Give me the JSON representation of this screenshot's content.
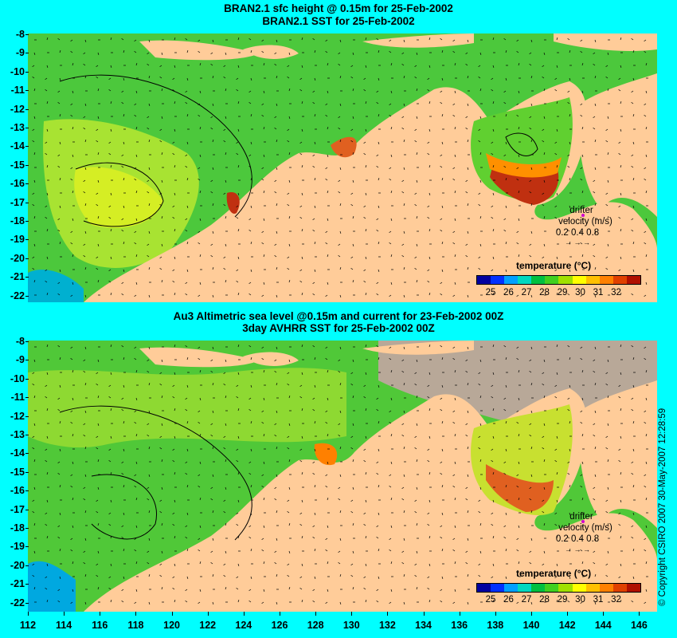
{
  "top_panel": {
    "title_line1": "BRAN2.1 sfc height @ 0.15m for 25-Feb-2002",
    "title_line2": "BRAN2.1 SST for 25-Feb-2002",
    "legend_title": "temperature (°C)",
    "drifter_label": "drifter",
    "velocity_label": "velocity (m/s)",
    "velocity_values": "0.2 0.4 0.8",
    "velocity_arrows": "→ → →"
  },
  "bottom_panel": {
    "title_line1": "Au3 Altimetric sea level  @0.15m and current for 23-Feb-2002 00Z",
    "title_line2": "3day AVHRR SST for 25-Feb-2002 00Z",
    "legend_title": "temperature (°C)",
    "drifter_label": "drifter",
    "velocity_label": "velocity (m/s)",
    "velocity_values": "0.2 0.4 0.8",
    "velocity_arrows": "→ → →"
  },
  "y_axis_labels": [
    "-8",
    "-9",
    "-10",
    "-11",
    "-12",
    "-13",
    "-14",
    "-15",
    "-16",
    "-17",
    "-18",
    "-19",
    "-20",
    "-21",
    "-22"
  ],
  "x_axis_labels": [
    "112",
    "114",
    "116",
    "118",
    "120",
    "122",
    "124",
    "126",
    "128",
    "130",
    "132",
    "134",
    "136",
    "138",
    "140",
    "142",
    "144",
    "146"
  ],
  "colorbar_labels": [
    "25",
    "26",
    "27",
    "28",
    "29",
    "30",
    "31",
    "32"
  ],
  "colorbar_colors": [
    "#0000a0",
    "#0030ff",
    "#00a0ff",
    "#00d8c0",
    "#00c040",
    "#40d020",
    "#a0e000",
    "#ffff00",
    "#ffc000",
    "#ff8000",
    "#e04000",
    "#b01000"
  ],
  "copyright": "© Copyright CSIRO 2007    30-May-2007 12:28:59",
  "colors": {
    "background": "#00ffff",
    "land": "#ffcc99",
    "ocean_green": "#33cc33",
    "warm": "#d04000",
    "missing": "#b8a898"
  },
  "map_extent": {
    "lon_min": 112,
    "lon_max": 147,
    "lat_min": -22.5,
    "lat_max": -8
  }
}
